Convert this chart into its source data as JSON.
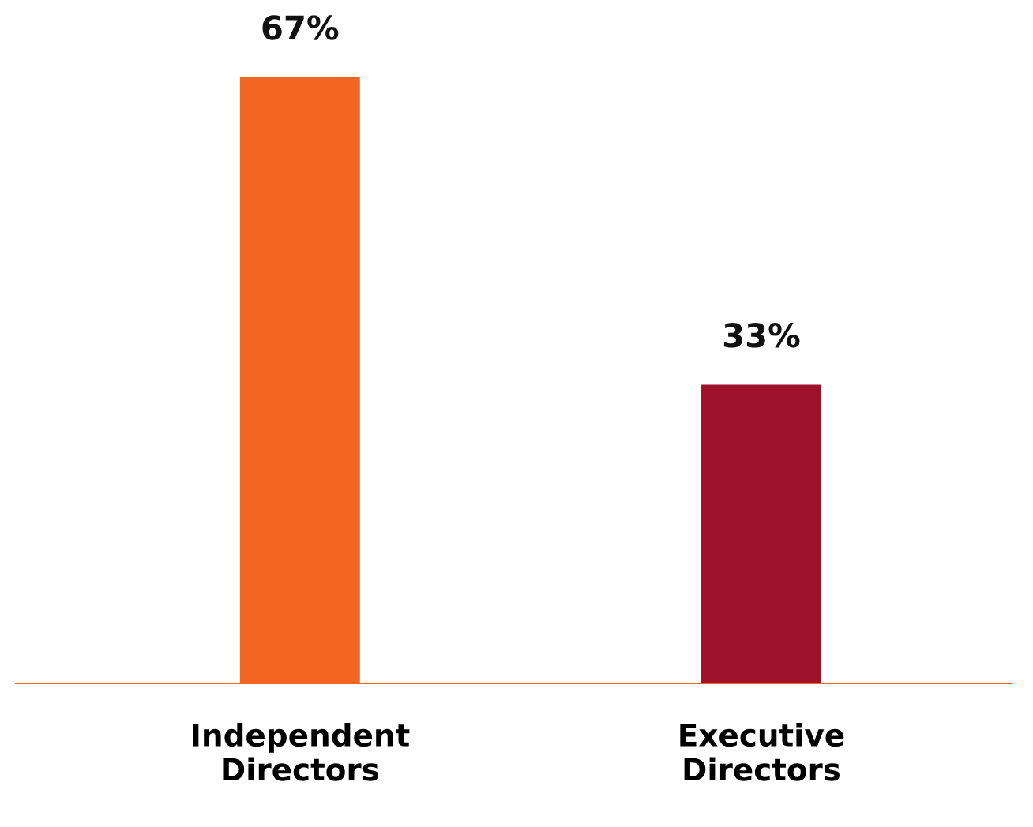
{
  "chart_data": {
    "type": "bar",
    "categories": [
      "Independent\nDirectors",
      "Executive\nDirectors"
    ],
    "values": [
      67,
      33
    ],
    "colors": [
      "#f26522",
      "#a0112b"
    ],
    "value_labels": [
      "67%",
      "33%"
    ],
    "grid": false,
    "legend": false,
    "tick_labels": "x"
  }
}
